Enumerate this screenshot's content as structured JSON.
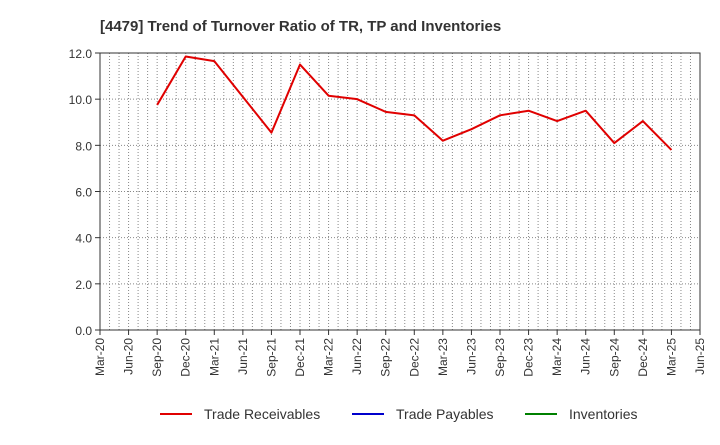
{
  "chart_data": {
    "type": "line",
    "title": "[4479]  Trend of Turnover Ratio of TR, TP and Inventories",
    "xlabel": "",
    "ylabel": "",
    "x_tick_labels": [
      "Mar-20",
      "Jun-20",
      "Sep-20",
      "Dec-20",
      "Mar-21",
      "Jun-21",
      "Sep-21",
      "Dec-21",
      "Mar-22",
      "Jun-22",
      "Sep-22",
      "Dec-22",
      "Mar-23",
      "Jun-23",
      "Sep-23",
      "Dec-23",
      "Mar-24",
      "Jun-24",
      "Sep-24",
      "Dec-24",
      "Mar-25",
      "Jun-25"
    ],
    "y_tick_labels": [
      "0.0",
      "2.0",
      "4.0",
      "6.0",
      "8.0",
      "10.0",
      "12.0"
    ],
    "ylim": [
      0,
      12
    ],
    "grid": true,
    "legend_position": "bottom",
    "series": [
      {
        "name": "Trade Receivables",
        "color": "#e00000",
        "points": [
          {
            "x": "Sep-20",
            "y": 9.75
          },
          {
            "x": "Dec-20",
            "y": 11.85
          },
          {
            "x": "Mar-21",
            "y": 11.65
          },
          {
            "x": "Jun-21",
            "y": 10.1
          },
          {
            "x": "Sep-21",
            "y": 8.55
          },
          {
            "x": "Dec-21",
            "y": 11.5
          },
          {
            "x": "Mar-22",
            "y": 10.15
          },
          {
            "x": "Jun-22",
            "y": 10.0
          },
          {
            "x": "Sep-22",
            "y": 9.45
          },
          {
            "x": "Dec-22",
            "y": 9.3
          },
          {
            "x": "Mar-23",
            "y": 8.2
          },
          {
            "x": "Jun-23",
            "y": 8.7
          },
          {
            "x": "Sep-23",
            "y": 9.3
          },
          {
            "x": "Dec-23",
            "y": 9.5
          },
          {
            "x": "Mar-24",
            "y": 9.05
          },
          {
            "x": "Jun-24",
            "y": 9.5
          },
          {
            "x": "Sep-24",
            "y": 8.1
          },
          {
            "x": "Dec-24",
            "y": 9.05
          },
          {
            "x": "Mar-25",
            "y": 7.8
          }
        ]
      },
      {
        "name": "Trade Payables",
        "color": "#0000cc",
        "points": []
      },
      {
        "name": "Inventories",
        "color": "#008000",
        "points": []
      }
    ]
  }
}
